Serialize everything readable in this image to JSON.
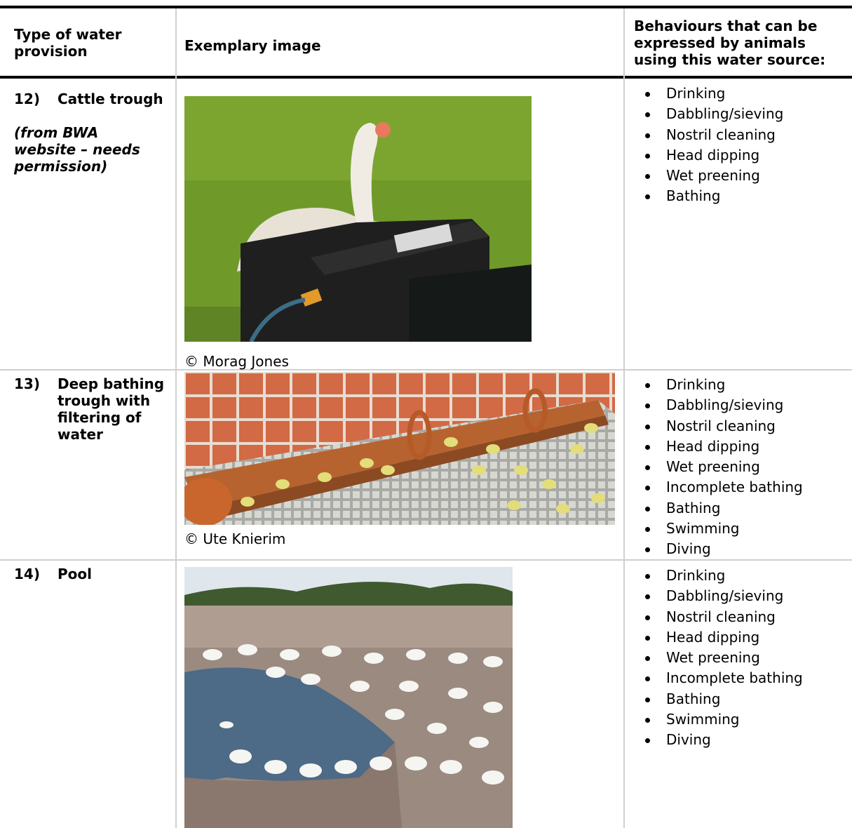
{
  "header": {
    "type": "Type of water provision",
    "image": "Exemplary image",
    "behaviours": "Behaviours that can be expressed by animals using this water source:"
  },
  "rows": [
    {
      "number": "12)",
      "type": "Cattle trough",
      "note": "(from BWA website – needs permission)",
      "credit": "© Morag Jones",
      "behaviours": [
        "Drinking",
        "Dabbling/sieving",
        "Nostril cleaning",
        "Head dipping",
        "Wet preening",
        "Bathing"
      ]
    },
    {
      "number": "13)",
      "type": "Deep bathing trough with filtering of water",
      "credit": "© Ute Knierim",
      "behaviours": [
        "Drinking",
        "Dabbling/sieving",
        "Nostril cleaning",
        "Head dipping",
        "Wet preening",
        "Incomplete bathing",
        "Bathing",
        "Swimming",
        "Diving"
      ]
    },
    {
      "number": "14)",
      "type": "Pool",
      "behaviours": [
        "Drinking",
        "Dabbling/sieving",
        "Nostril cleaning",
        "Head dipping",
        "Wet preening",
        "Incomplete bathing",
        "Bathing",
        "Swimming",
        "Diving"
      ]
    }
  ]
}
